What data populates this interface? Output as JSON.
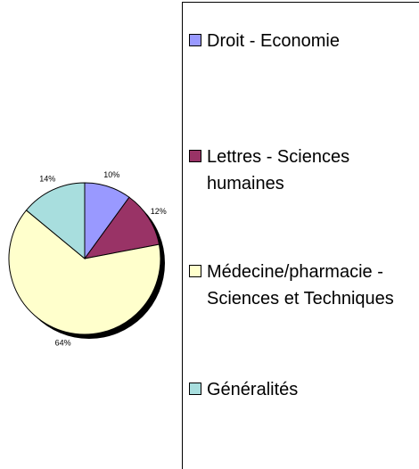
{
  "chart_data": {
    "type": "pie",
    "categories": [
      "Droit - Economie",
      "Lettres - Sciences humaines",
      "Médecine/pharmacie - Sciences et Techniques",
      "Généralités"
    ],
    "values": [
      10,
      12,
      64,
      14
    ],
    "value_labels": [
      "10%",
      "12%",
      "64%",
      "14%"
    ],
    "colors": [
      "#9999ff",
      "#993366",
      "#ffffcc",
      "#a8dede"
    ],
    "legend": "right"
  }
}
